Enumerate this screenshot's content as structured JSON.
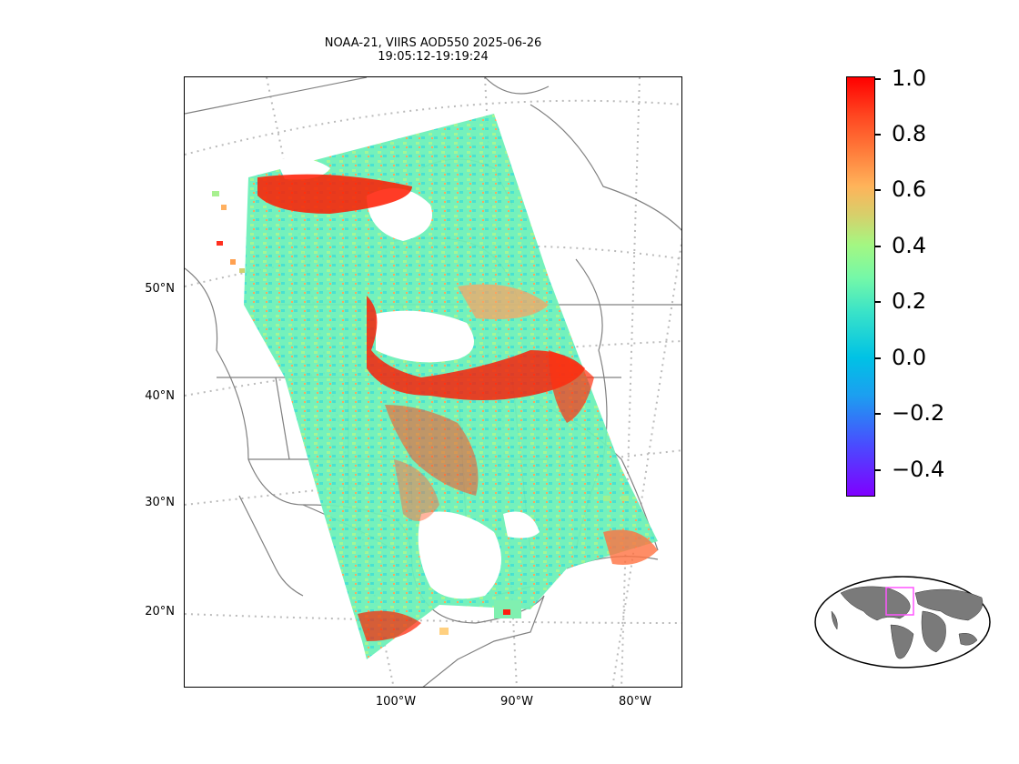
{
  "title": {
    "line1": "NOAA-21, VIIRS AOD550 2025-06-26",
    "line2": "19:05:12-19:19:24"
  },
  "lat_labels": [
    "50°N",
    "40°N",
    "30°N",
    "20°N"
  ],
  "lon_labels": [
    "100°W",
    "90°W",
    "80°W"
  ],
  "colorbar": {
    "colormap": "rainbow",
    "range": [
      -0.5,
      1.0
    ],
    "ticks": [
      "1.0",
      "0.8",
      "0.6",
      "0.4",
      "0.2",
      "0.0",
      "−0.2",
      "−0.4"
    ]
  },
  "colors": {
    "coastline": "#808080",
    "graticule": "#bbbbbb",
    "inset_land": "#808080",
    "inset_box": "#ff55ff",
    "high_aod": "#ff0000",
    "low_aod": "#4ff0c0"
  },
  "inset": {
    "projection": "robinson",
    "description_icon": "world-locator-icon"
  }
}
